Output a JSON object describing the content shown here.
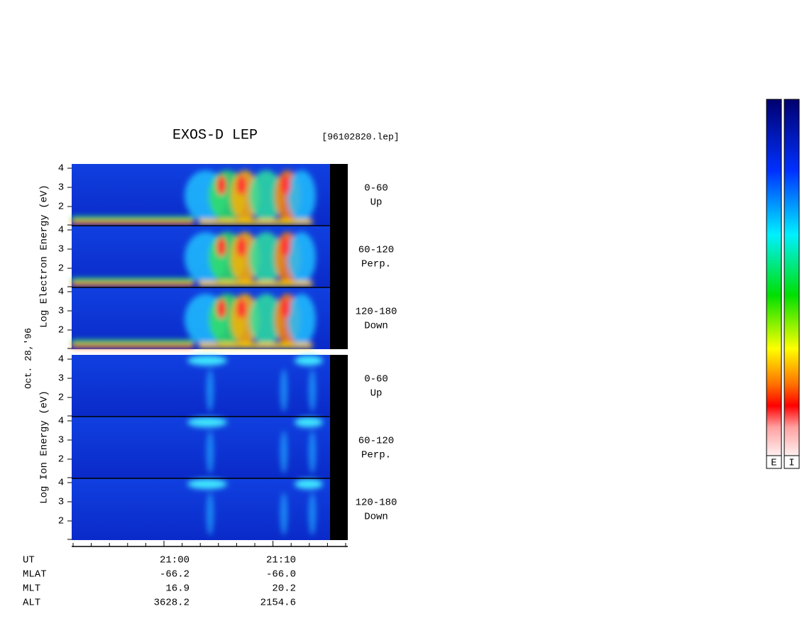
{
  "header": {
    "title": "EXOS-D LEP",
    "file": "[96102820.lep]"
  },
  "date": "Oct. 28,'96",
  "groups": [
    {
      "axis_label": "Log  Electron  Energy (eV)",
      "panels": [
        {
          "ticks": [
            "4",
            "3",
            "2"
          ],
          "label": [
            "0-60",
            "Up"
          ]
        },
        {
          "ticks": [
            "4",
            "3",
            "2"
          ],
          "label": [
            "60-120",
            "Perp."
          ]
        },
        {
          "ticks": [
            "4",
            "3",
            "2"
          ],
          "label": [
            "120-180",
            "Down"
          ]
        }
      ]
    },
    {
      "axis_label": "Log  Ion  Energy (eV)",
      "panels": [
        {
          "ticks": [
            "4",
            "3",
            "2"
          ],
          "label": [
            "0-60",
            "Up"
          ]
        },
        {
          "ticks": [
            "4",
            "3",
            "2"
          ],
          "label": [
            "60-120",
            "Perp."
          ]
        },
        {
          "ticks": [
            "4",
            "3",
            "2"
          ],
          "label": [
            "120-180",
            "Down"
          ]
        }
      ]
    }
  ],
  "time_axis": {
    "row_labels": [
      "UT",
      "MLAT",
      "MLT",
      "ALT"
    ],
    "columns": [
      [
        "21:00",
        "-66.2",
        "16.9",
        "3628.2"
      ],
      [
        "21:10",
        "-66.0",
        "20.2",
        "2154.6"
      ]
    ]
  },
  "colorbars": [
    "E",
    "I"
  ]
}
